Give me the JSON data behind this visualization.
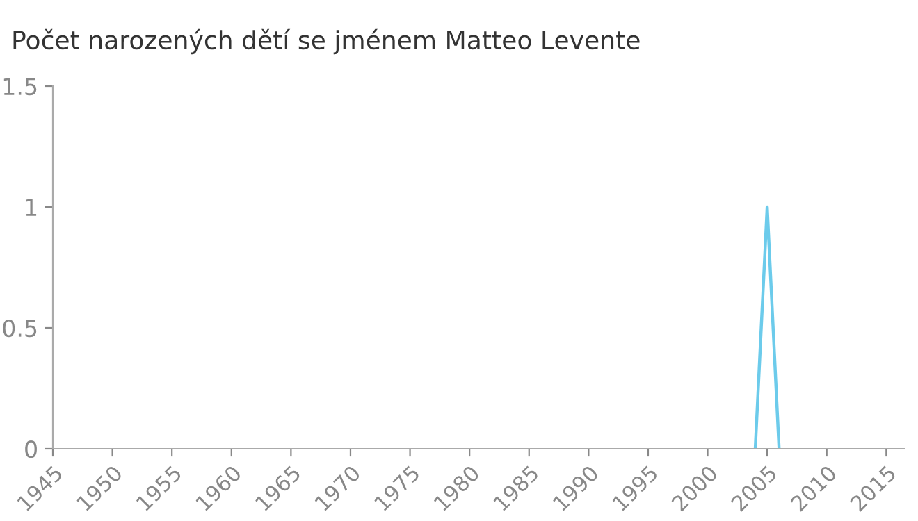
{
  "chart_data": {
    "type": "line",
    "title": "Počet narozených dětí se jménem Matteo Levente",
    "x": [
      2004,
      2005,
      2006
    ],
    "series": [
      {
        "color": "#6ccbeb",
        "values": [
          0,
          1,
          0
        ]
      }
    ],
    "xlim": [
      1945,
      2016.5
    ],
    "xticks": [
      1945,
      1950,
      1955,
      1960,
      1965,
      1970,
      1975,
      1980,
      1985,
      1990,
      1995,
      2000,
      2005,
      2010,
      2015
    ],
    "ylim": [
      0,
      1.5
    ],
    "yticks": [
      0,
      0.5,
      1,
      1.5
    ],
    "grid": false,
    "marker": "none",
    "line_style": "solid"
  }
}
